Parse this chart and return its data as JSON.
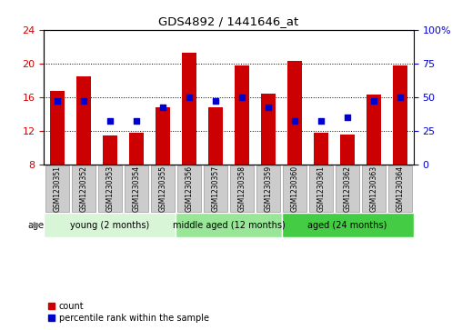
{
  "title": "GDS4892 / 1441646_at",
  "samples": [
    "GSM1230351",
    "GSM1230352",
    "GSM1230353",
    "GSM1230354",
    "GSM1230355",
    "GSM1230356",
    "GSM1230357",
    "GSM1230358",
    "GSM1230359",
    "GSM1230360",
    "GSM1230361",
    "GSM1230362",
    "GSM1230363",
    "GSM1230364"
  ],
  "counts": [
    16.7,
    18.5,
    11.4,
    11.8,
    14.8,
    21.3,
    14.8,
    19.8,
    16.4,
    20.3,
    11.7,
    11.5,
    16.3,
    19.7
  ],
  "percentiles": [
    47,
    47,
    32,
    32,
    42,
    50,
    47,
    50,
    42,
    32,
    32,
    35,
    47,
    50
  ],
  "ylim_left": [
    8,
    24
  ],
  "yticks_left": [
    8,
    12,
    16,
    20,
    24
  ],
  "ylim_right": [
    0,
    100
  ],
  "yticks_right": [
    0,
    25,
    50,
    75,
    100
  ],
  "bar_color": "#cc0000",
  "dot_color": "#0000cc",
  "bar_bottom": 8,
  "groups": [
    {
      "label": "young (2 months)",
      "start": 0,
      "end": 5,
      "color": "#d8f5d8"
    },
    {
      "label": "middle aged (12 months)",
      "start": 5,
      "end": 9,
      "color": "#99e699"
    },
    {
      "label": "aged (24 months)",
      "start": 9,
      "end": 14,
      "color": "#44cc44"
    }
  ],
  "age_label": "age",
  "legend_count_color": "#cc0000",
  "legend_dot_color": "#0000cc",
  "background_color": "#ffffff",
  "tick_label_color_left": "#cc0000",
  "tick_label_color_right": "#0000cc",
  "xtick_box_color": "#cccccc",
  "xtick_box_edge_color": "#999999"
}
